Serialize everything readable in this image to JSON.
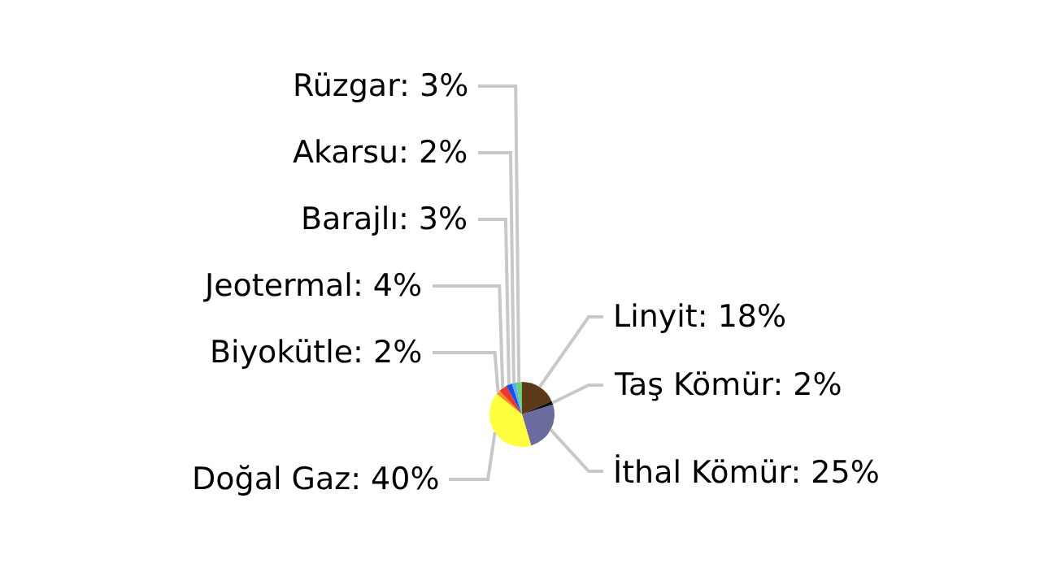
{
  "chart_data": {
    "type": "pie",
    "categories": [
      "Linyit",
      "Taş Kömür",
      "İthal Kömür",
      "Doğal Gaz",
      "Biyokütle",
      "Jeotermal",
      "Barajlı",
      "Akarsu",
      "Rüzgar"
    ],
    "values": [
      18,
      2,
      25,
      40,
      2,
      4,
      3,
      2,
      3
    ],
    "value_labels": [
      "18%",
      "2%",
      "25%",
      "40%",
      "2%",
      "4%",
      "3%",
      "2%",
      "3%"
    ],
    "colors": [
      "#5c3a17",
      "#111111",
      "#6b6b9e",
      "#ffff40",
      "#ff8c1a",
      "#e83a2a",
      "#1f4fe0",
      "#4fb0ff",
      "#6fd06f"
    ],
    "legend": false
  }
}
